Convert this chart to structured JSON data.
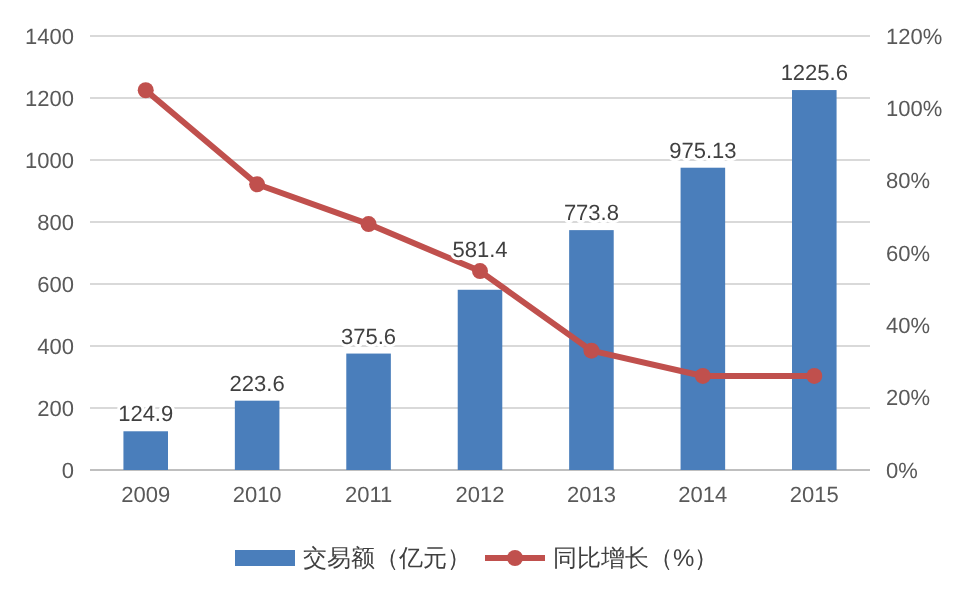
{
  "chart_data": {
    "type": "bar",
    "categories": [
      "2009",
      "2010",
      "2011",
      "2012",
      "2013",
      "2014",
      "2015"
    ],
    "series": [
      {
        "name": "交易额（亿元）",
        "color": "#4a7ebb",
        "values": [
          124.9,
          223.6,
          375.6,
          581.4,
          773.8,
          975.13,
          1225.6
        ],
        "data_labels": true
      },
      {
        "name": "同比增长（%）",
        "type": "line",
        "axis": "y2",
        "color": "#c0504d",
        "marker": "circle",
        "values": [
          105,
          79,
          68,
          55,
          33,
          26,
          26
        ]
      }
    ],
    "ylim": [
      0,
      1400
    ],
    "yticks": [
      0,
      200,
      400,
      600,
      800,
      1000,
      1200,
      1400
    ],
    "y2lim": [
      0,
      120
    ],
    "y2ticks": [
      {
        "value": 0,
        "label": "0%"
      },
      {
        "value": 20,
        "label": "20%"
      },
      {
        "value": 40,
        "label": "40%"
      },
      {
        "value": 60,
        "label": "60%"
      },
      {
        "value": 80,
        "label": "80%"
      },
      {
        "value": 100,
        "label": "100%"
      },
      {
        "value": 120,
        "label": "120%"
      }
    ],
    "grid": "y",
    "legend": "bottom"
  }
}
